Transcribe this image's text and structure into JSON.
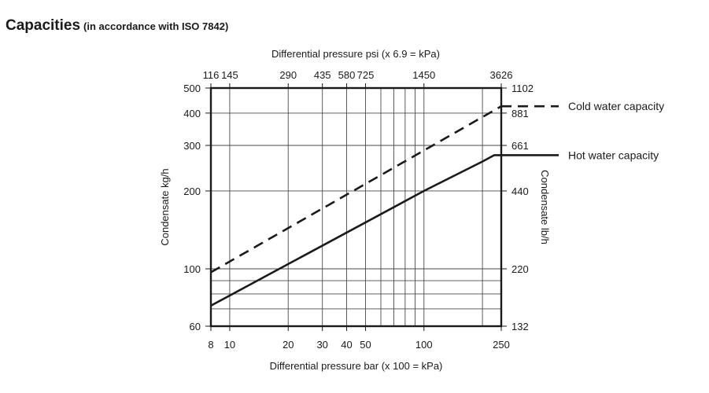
{
  "page": {
    "title": "Capacities",
    "subtitle": "(in accordance with ISO 7842)"
  },
  "chart_data": {
    "type": "line",
    "x_bottom": {
      "label": "Differential pressure bar (x 100 = kPa)",
      "scale": "log",
      "range": [
        8,
        250
      ],
      "ticks": [
        8,
        10,
        20,
        30,
        40,
        50,
        100,
        250
      ],
      "tick_labels": [
        "8",
        "10",
        "20",
        "30",
        "40",
        "50",
        "100",
        "250"
      ],
      "gridlines": [
        10,
        20,
        30,
        40,
        50,
        60,
        70,
        80,
        90,
        100,
        200
      ]
    },
    "x_top": {
      "label": "Differential pressure psi (x 6.9 = kPa)",
      "ticks_bar": [
        8,
        10,
        20,
        30,
        40,
        50,
        100,
        250
      ],
      "tick_labels": [
        "116",
        "145",
        "290",
        "435",
        "580",
        "725",
        "1450",
        "3626"
      ]
    },
    "y_left": {
      "label": "Condensate kg/h",
      "scale": "log",
      "range": [
        60,
        500
      ],
      "ticks": [
        60,
        100,
        200,
        300,
        400,
        500
      ],
      "tick_labels": [
        "60",
        "100",
        "200",
        "300",
        "400",
        "500"
      ],
      "gridlines": [
        70,
        80,
        90,
        100,
        200,
        300,
        400
      ]
    },
    "y_right": {
      "label": "Condensate lb/h",
      "ticks_kgh": [
        60,
        100,
        200,
        300,
        400,
        500
      ],
      "tick_labels": [
        "132",
        "220",
        "440",
        "661",
        "881",
        "1102"
      ]
    },
    "grid": true,
    "series": [
      {
        "name": "Cold water capacity",
        "style": "dashed",
        "points": [
          [
            8,
            97
          ],
          [
            250,
            425
          ]
        ]
      },
      {
        "name": "Hot water capacity",
        "style": "solid",
        "points": [
          [
            8,
            72
          ],
          [
            100,
            200
          ],
          [
            200,
            260
          ],
          [
            230,
            275
          ],
          [
            250,
            275
          ]
        ]
      }
    ]
  }
}
